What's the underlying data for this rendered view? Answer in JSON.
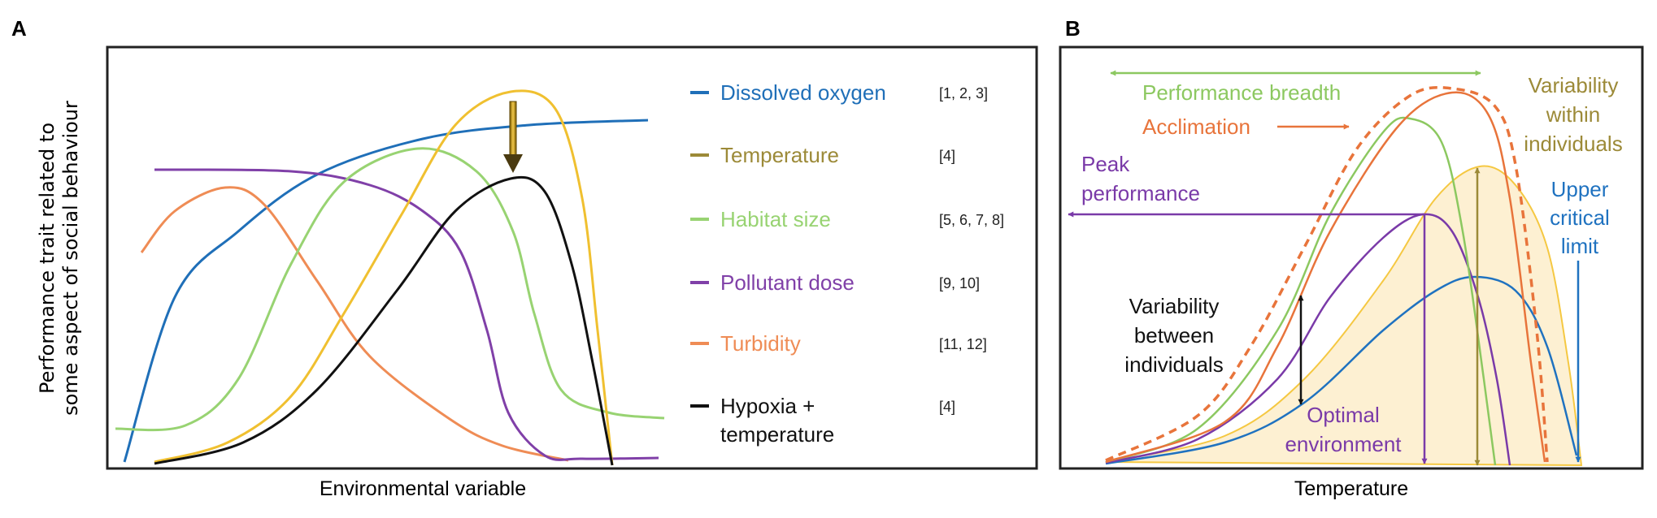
{
  "panel_a": {
    "label": "A",
    "y_axis_label": [
      "Performance trait related to",
      "some aspect of social behaviour"
    ],
    "x_axis_label": "Environmental variable",
    "legend": [
      {
        "label": "Dissolved oxygen",
        "refs": "[1, 2, 3]",
        "color": "#1f6fb8"
      },
      {
        "label": "Temperature",
        "refs": "[4]",
        "color": "#9c8a38"
      },
      {
        "label": "Habitat size",
        "refs": "[5, 6, 7, 8]",
        "color": "#98d372"
      },
      {
        "label": "Pollutant dose",
        "refs": "[9, 10]",
        "color": "#8040a8"
      },
      {
        "label": "Turbidity",
        "refs": "[11, 12]",
        "color": "#ef8c55"
      },
      {
        "label": [
          "Hypoxia +",
          "temperature"
        ],
        "refs": "[4]",
        "color": "#111111"
      }
    ],
    "curve_colors": {
      "yellow": "#f0c030",
      "arrow": "#b08a10"
    }
  },
  "panel_b": {
    "label": "B",
    "x_axis_label": "Temperature",
    "annotations": {
      "performance_breadth": "Performance breadth",
      "acclimation": "Acclimation",
      "peak_performance": [
        "Peak",
        "performance"
      ],
      "variability_within": [
        "Variability",
        "within",
        "individuals"
      ],
      "upper_critical_limit": [
        "Upper",
        "critical",
        "limit"
      ],
      "variability_between": [
        "Variability",
        "between",
        "individuals"
      ],
      "optimal_environment": [
        "Optimal",
        "environment"
      ]
    },
    "colors": {
      "green": "#8cc860",
      "orange": "#e8743b",
      "purple": "#7a3aa8",
      "blue": "#1f72c0",
      "olive": "#9c8a38",
      "fill": "#fdf0d2",
      "fill_stroke": "#f5c842"
    }
  }
}
